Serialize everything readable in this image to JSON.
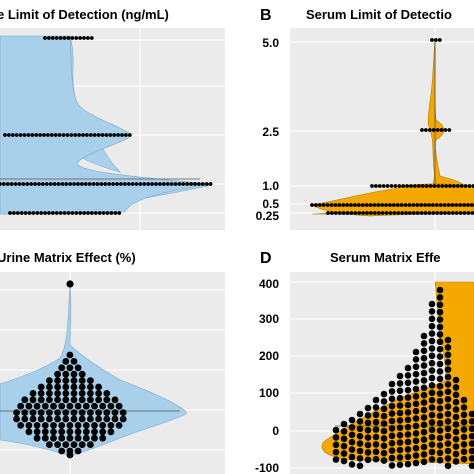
{
  "chart_data": [
    {
      "type": "violin",
      "panel_label": "",
      "title": "e Limit of Detection (ng/mL)",
      "fill": "#a8d0ea",
      "yticks": [],
      "ylim": [
        0,
        5.3
      ],
      "points": [
        {
          "y": 5.0,
          "n": 14
        },
        {
          "y": 2.5,
          "n": 34
        },
        {
          "y": 1.0,
          "n": 55
        },
        {
          "y": 0.25,
          "n": 33
        }
      ]
    },
    {
      "type": "violin",
      "panel_label": "B",
      "title": "Serum Limit of Detectio",
      "fill": "#f5a800",
      "yticks": [
        "5.0",
        "2.5",
        "1.0",
        "0.5",
        "0.25"
      ],
      "ytick_values": [
        5.0,
        2.5,
        1.0,
        0.5,
        0.25
      ],
      "ylim": [
        0,
        5.3
      ],
      "points": [
        {
          "y": 5.0,
          "n": 3
        },
        {
          "y": 2.5,
          "n": 8
        },
        {
          "y": 1.0,
          "n": 32
        },
        {
          "y": 0.5,
          "n": 60
        },
        {
          "y": 0.25,
          "n": 55
        }
      ]
    },
    {
      "type": "violin",
      "panel_label": "",
      "title": "Urine Matrix Effect (%)",
      "fill": "#a8d0ea",
      "yticks": [],
      "ylim": [
        -40,
        140
      ],
      "outlier": 110
    },
    {
      "type": "violin",
      "panel_label": "D",
      "title": "Serum Matrix Effe",
      "fill": "#f5a800",
      "yticks": [
        "400",
        "300",
        "200",
        "100",
        "0",
        "-100"
      ],
      "ytick_values": [
        400,
        300,
        200,
        100,
        0,
        -100
      ],
      "ylim": [
        -100,
        400
      ]
    }
  ]
}
